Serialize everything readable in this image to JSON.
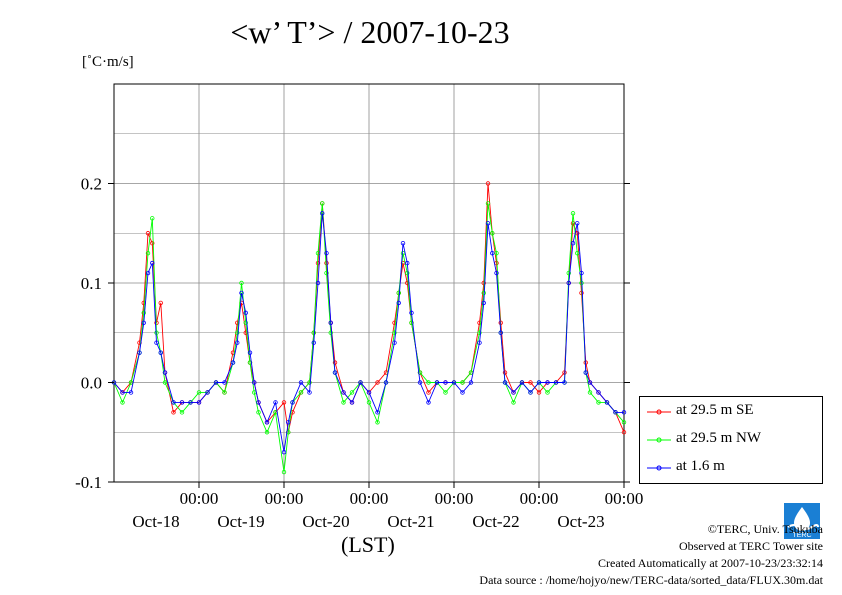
{
  "chart_data": {
    "type": "line",
    "title": "<w’ T’> / 2007-10-23",
    "ylabel": "[˚C·m/s]",
    "xlabel": "(LST)",
    "ylim": [
      -0.1,
      0.3
    ],
    "xlim": [
      0,
      6
    ],
    "x_unit": "days from Oct-17 12:00 LST",
    "y_ticks": [
      {
        "value": -0.1,
        "label": "-0.1"
      },
      {
        "value": 0.0,
        "label": "0.0"
      },
      {
        "value": 0.1,
        "label": "0.1"
      },
      {
        "value": 0.2,
        "label": "0.2"
      }
    ],
    "x_ticks": [
      {
        "value": 1,
        "time": "00:00",
        "date": "Oct-18"
      },
      {
        "value": 2,
        "time": "00:00",
        "date": "Oct-19"
      },
      {
        "value": 3,
        "time": "00:00",
        "date": "Oct-20"
      },
      {
        "value": 4,
        "time": "00:00",
        "date": "Oct-21"
      },
      {
        "value": 5,
        "time": "00:00",
        "date": "Oct-22"
      },
      {
        "value": 6,
        "time": "00:00",
        "date": "Oct-23"
      }
    ],
    "grid": true,
    "legend_position": "right, outside plot",
    "series": [
      {
        "name": "at 29.5 m SE",
        "color": "#ff0000",
        "x": [
          0.0,
          0.1,
          0.2,
          0.3,
          0.35,
          0.4,
          0.45,
          0.5,
          0.55,
          0.6,
          0.7,
          0.8,
          0.9,
          1.0,
          1.1,
          1.2,
          1.3,
          1.4,
          1.45,
          1.5,
          1.55,
          1.6,
          1.65,
          1.7,
          1.8,
          1.9,
          2.0,
          2.05,
          2.1,
          2.2,
          2.3,
          2.35,
          2.4,
          2.45,
          2.5,
          2.55,
          2.6,
          2.7,
          2.8,
          2.9,
          3.0,
          3.1,
          3.2,
          3.3,
          3.35,
          3.4,
          3.45,
          3.5,
          3.6,
          3.7,
          3.8,
          3.9,
          4.0,
          4.1,
          4.2,
          4.3,
          4.35,
          4.4,
          4.45,
          4.5,
          4.55,
          4.6,
          4.7,
          4.8,
          4.9,
          5.0,
          5.1,
          5.2,
          5.3,
          5.35,
          5.4,
          5.45,
          5.5,
          5.55,
          5.6,
          5.7,
          5.8,
          5.9,
          6.0
        ],
        "y": [
          0.0,
          -0.01,
          0.0,
          0.04,
          0.08,
          0.15,
          0.14,
          0.06,
          0.08,
          0.01,
          -0.03,
          -0.02,
          -0.02,
          -0.02,
          -0.01,
          0.0,
          -0.01,
          0.03,
          0.06,
          0.08,
          0.05,
          0.02,
          0.0,
          -0.02,
          -0.04,
          -0.03,
          -0.02,
          -0.05,
          -0.03,
          -0.01,
          0.0,
          0.05,
          0.12,
          0.18,
          0.12,
          0.06,
          0.02,
          -0.01,
          -0.02,
          0.0,
          -0.01,
          0.0,
          0.01,
          0.06,
          0.09,
          0.12,
          0.1,
          0.06,
          0.01,
          -0.01,
          0.0,
          0.0,
          0.0,
          0.0,
          0.01,
          0.06,
          0.1,
          0.2,
          0.15,
          0.12,
          0.06,
          0.01,
          -0.01,
          0.0,
          0.0,
          -0.01,
          0.0,
          0.0,
          0.01,
          0.1,
          0.16,
          0.15,
          0.09,
          0.02,
          0.0,
          -0.01,
          -0.02,
          -0.03,
          -0.05
        ]
      },
      {
        "name": "at 29.5 m NW",
        "color": "#00ff00",
        "x": [
          0.0,
          0.1,
          0.2,
          0.3,
          0.35,
          0.4,
          0.45,
          0.5,
          0.55,
          0.6,
          0.7,
          0.8,
          0.9,
          1.0,
          1.1,
          1.2,
          1.3,
          1.4,
          1.45,
          1.5,
          1.55,
          1.6,
          1.65,
          1.7,
          1.8,
          1.9,
          2.0,
          2.05,
          2.1,
          2.2,
          2.3,
          2.35,
          2.4,
          2.45,
          2.5,
          2.55,
          2.6,
          2.7,
          2.8,
          2.9,
          3.0,
          3.1,
          3.2,
          3.3,
          3.35,
          3.4,
          3.45,
          3.5,
          3.6,
          3.7,
          3.8,
          3.9,
          4.0,
          4.1,
          4.2,
          4.3,
          4.35,
          4.4,
          4.45,
          4.5,
          4.55,
          4.6,
          4.7,
          4.8,
          4.9,
          5.0,
          5.1,
          5.2,
          5.3,
          5.35,
          5.4,
          5.45,
          5.5,
          5.55,
          5.6,
          5.7,
          5.8,
          5.9,
          6.0
        ],
        "y": [
          0.0,
          -0.02,
          0.0,
          0.03,
          0.07,
          0.13,
          0.165,
          0.05,
          0.03,
          0.0,
          -0.02,
          -0.03,
          -0.02,
          -0.01,
          -0.01,
          0.0,
          -0.01,
          0.02,
          0.05,
          0.1,
          0.06,
          0.02,
          -0.01,
          -0.03,
          -0.05,
          -0.03,
          -0.09,
          -0.05,
          -0.02,
          -0.01,
          0.0,
          0.05,
          0.13,
          0.18,
          0.11,
          0.05,
          0.01,
          -0.02,
          -0.01,
          0.0,
          -0.02,
          -0.04,
          0.0,
          0.05,
          0.09,
          0.13,
          0.11,
          0.06,
          0.01,
          0.0,
          0.0,
          -0.01,
          0.0,
          0.0,
          0.01,
          0.05,
          0.09,
          0.18,
          0.15,
          0.13,
          0.05,
          0.0,
          -0.02,
          0.0,
          -0.01,
          0.0,
          -0.01,
          0.0,
          0.0,
          0.11,
          0.17,
          0.13,
          0.1,
          0.01,
          -0.01,
          -0.02,
          -0.02,
          -0.03,
          -0.04
        ]
      },
      {
        "name": "at 1.6 m",
        "color": "#0000ff",
        "x": [
          0.0,
          0.1,
          0.2,
          0.3,
          0.35,
          0.4,
          0.45,
          0.5,
          0.55,
          0.6,
          0.7,
          0.8,
          0.9,
          1.0,
          1.1,
          1.2,
          1.3,
          1.4,
          1.45,
          1.5,
          1.55,
          1.6,
          1.65,
          1.7,
          1.8,
          1.9,
          2.0,
          2.05,
          2.1,
          2.2,
          2.3,
          2.35,
          2.4,
          2.45,
          2.5,
          2.55,
          2.6,
          2.7,
          2.8,
          2.9,
          3.0,
          3.1,
          3.2,
          3.3,
          3.35,
          3.4,
          3.45,
          3.5,
          3.6,
          3.7,
          3.8,
          3.9,
          4.0,
          4.1,
          4.2,
          4.3,
          4.35,
          4.4,
          4.45,
          4.5,
          4.55,
          4.6,
          4.7,
          4.8,
          4.9,
          5.0,
          5.1,
          5.2,
          5.3,
          5.35,
          5.4,
          5.45,
          5.5,
          5.55,
          5.6,
          5.7,
          5.8,
          5.9,
          6.0
        ],
        "y": [
          0.0,
          -0.01,
          -0.01,
          0.03,
          0.06,
          0.11,
          0.12,
          0.04,
          0.03,
          0.01,
          -0.02,
          -0.02,
          -0.02,
          -0.02,
          -0.01,
          0.0,
          0.0,
          0.02,
          0.04,
          0.09,
          0.07,
          0.03,
          0.0,
          -0.02,
          -0.04,
          -0.02,
          -0.07,
          -0.04,
          -0.02,
          0.0,
          -0.01,
          0.04,
          0.1,
          0.17,
          0.13,
          0.06,
          0.01,
          -0.01,
          -0.02,
          0.0,
          -0.01,
          -0.03,
          0.0,
          0.04,
          0.08,
          0.14,
          0.12,
          0.07,
          0.0,
          -0.02,
          0.0,
          0.0,
          0.0,
          -0.01,
          0.0,
          0.04,
          0.08,
          0.16,
          0.13,
          0.11,
          0.05,
          0.0,
          -0.01,
          0.0,
          -0.01,
          0.0,
          0.0,
          0.0,
          0.0,
          0.1,
          0.14,
          0.16,
          0.11,
          0.01,
          0.0,
          -0.01,
          -0.02,
          -0.03,
          -0.03
        ]
      }
    ]
  },
  "footer": {
    "copyright": "©TERC, Univ. Tsukuba",
    "site": "Observed at TERC Tower site",
    "created": "Created Automatically at 2007-10-23/23:32:14",
    "source": "Data source : /home/hojyo/new/TERC-data/sorted_data/FLUX.30m.dat",
    "logo_text": "TERC"
  }
}
